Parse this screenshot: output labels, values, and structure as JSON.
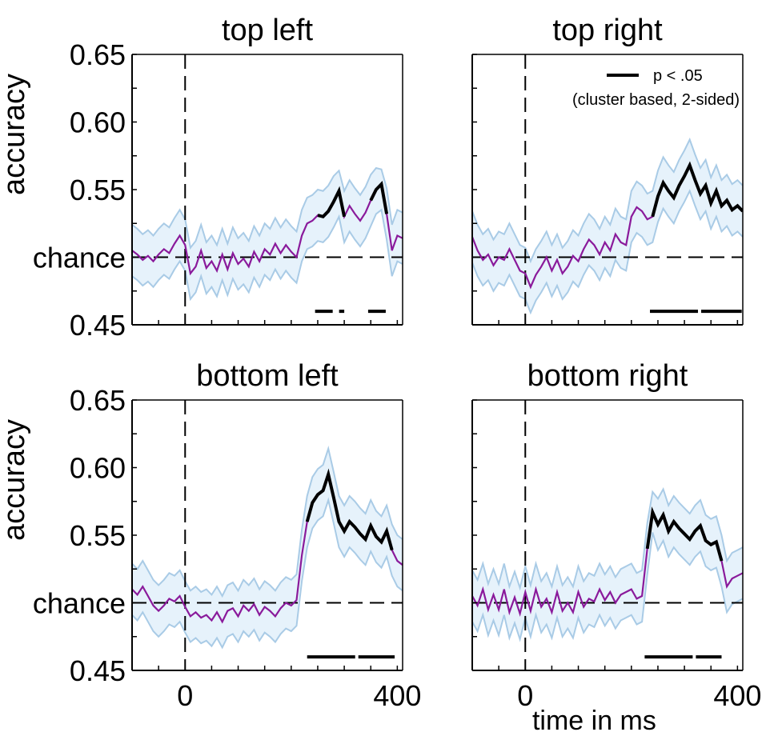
{
  "chart_data": [
    {
      "type": "line",
      "title": "top left",
      "ylabel": "accuracy",
      "xlabel": "",
      "xlim": [
        -100,
        410
      ],
      "ylim": [
        0.45,
        0.65
      ],
      "yticks": [
        0.45,
        0.5,
        0.55,
        0.6,
        0.65
      ],
      "ytick_labels": [
        "0.45",
        "chance",
        "0.55",
        "0.60",
        "0.65"
      ],
      "xticks": [],
      "chance": 0.5,
      "stimulus_onset": 0,
      "series": [
        {
          "x": [
            -100,
            -90,
            -80,
            -70,
            -60,
            -50,
            -40,
            -30,
            -20,
            -10,
            0,
            10,
            20,
            30,
            40,
            50,
            60,
            70,
            80,
            90,
            100,
            110,
            120,
            130,
            140,
            150,
            160,
            170,
            180,
            190,
            200,
            210,
            220,
            230,
            240,
            250,
            260,
            270,
            280,
            290,
            300,
            310,
            320,
            330,
            340,
            350,
            360,
            370,
            380,
            390,
            400,
            410
          ],
          "y": [
            0.505,
            0.502,
            0.498,
            0.501,
            0.497,
            0.502,
            0.506,
            0.503,
            0.51,
            0.516,
            0.509,
            0.488,
            0.493,
            0.505,
            0.492,
            0.497,
            0.49,
            0.502,
            0.491,
            0.503,
            0.495,
            0.499,
            0.493,
            0.504,
            0.497,
            0.506,
            0.502,
            0.51,
            0.503,
            0.509,
            0.504,
            0.5,
            0.516,
            0.525,
            0.527,
            0.531,
            0.53,
            0.534,
            0.541,
            0.549,
            0.53,
            0.538,
            0.532,
            0.527,
            0.533,
            0.542,
            0.55,
            0.554,
            0.532,
            0.505,
            0.516,
            0.514
          ],
          "upper": [
            0.524,
            0.521,
            0.517,
            0.52,
            0.516,
            0.521,
            0.525,
            0.522,
            0.529,
            0.535,
            0.528,
            0.507,
            0.512,
            0.524,
            0.511,
            0.516,
            0.509,
            0.521,
            0.51,
            0.522,
            0.514,
            0.518,
            0.512,
            0.523,
            0.516,
            0.525,
            0.521,
            0.529,
            0.522,
            0.528,
            0.523,
            0.519,
            0.535,
            0.544,
            0.546,
            0.55,
            0.549,
            0.553,
            0.56,
            0.564,
            0.549,
            0.557,
            0.551,
            0.546,
            0.552,
            0.561,
            0.566,
            0.565,
            0.551,
            0.524,
            0.535,
            0.533
          ],
          "lower": [
            0.486,
            0.483,
            0.479,
            0.482,
            0.478,
            0.483,
            0.487,
            0.484,
            0.491,
            0.497,
            0.49,
            0.469,
            0.474,
            0.486,
            0.473,
            0.478,
            0.471,
            0.483,
            0.472,
            0.484,
            0.476,
            0.48,
            0.474,
            0.485,
            0.478,
            0.487,
            0.483,
            0.491,
            0.484,
            0.49,
            0.485,
            0.481,
            0.497,
            0.506,
            0.508,
            0.512,
            0.511,
            0.515,
            0.522,
            0.53,
            0.511,
            0.519,
            0.513,
            0.508,
            0.514,
            0.523,
            0.532,
            0.535,
            0.513,
            0.486,
            0.497,
            0.495
          ]
        }
      ],
      "significant_clusters": [
        [
          245,
          300
        ],
        [
          345,
          385
        ]
      ],
      "sig_bars_at": 0.46
    },
    {
      "type": "line",
      "title": "top right",
      "ylabel": "",
      "xlabel": "",
      "xlim": [
        -100,
        410
      ],
      "ylim": [
        0.45,
        0.65
      ],
      "yticks": [
        0.45,
        0.5,
        0.55,
        0.6,
        0.65
      ],
      "ytick_labels": [],
      "xticks": [],
      "chance": 0.5,
      "stimulus_onset": 0,
      "series": [
        {
          "x": [
            -100,
            -90,
            -80,
            -70,
            -60,
            -50,
            -40,
            -30,
            -20,
            -10,
            0,
            10,
            20,
            30,
            40,
            50,
            60,
            70,
            80,
            90,
            100,
            110,
            120,
            130,
            140,
            150,
            160,
            170,
            180,
            190,
            200,
            210,
            220,
            230,
            240,
            250,
            260,
            270,
            280,
            290,
            300,
            310,
            320,
            330,
            340,
            350,
            360,
            370,
            380,
            390,
            400,
            410
          ],
          "y": [
            0.515,
            0.505,
            0.498,
            0.502,
            0.494,
            0.5,
            0.498,
            0.506,
            0.498,
            0.49,
            0.488,
            0.478,
            0.487,
            0.493,
            0.5,
            0.49,
            0.498,
            0.488,
            0.493,
            0.501,
            0.497,
            0.506,
            0.513,
            0.509,
            0.502,
            0.511,
            0.505,
            0.517,
            0.511,
            0.509,
            0.53,
            0.537,
            0.534,
            0.528,
            0.53,
            0.545,
            0.555,
            0.549,
            0.544,
            0.553,
            0.56,
            0.568,
            0.557,
            0.547,
            0.553,
            0.54,
            0.549,
            0.538,
            0.542,
            0.535,
            0.538,
            0.534
          ],
          "upper": [
            0.534,
            0.524,
            0.517,
            0.521,
            0.513,
            0.519,
            0.517,
            0.525,
            0.517,
            0.509,
            0.507,
            0.497,
            0.506,
            0.512,
            0.519,
            0.509,
            0.517,
            0.507,
            0.512,
            0.52,
            0.516,
            0.525,
            0.532,
            0.528,
            0.521,
            0.53,
            0.524,
            0.536,
            0.53,
            0.528,
            0.549,
            0.556,
            0.553,
            0.547,
            0.549,
            0.564,
            0.574,
            0.568,
            0.563,
            0.572,
            0.579,
            0.587,
            0.576,
            0.566,
            0.572,
            0.559,
            0.568,
            0.557,
            0.561,
            0.554,
            0.557,
            0.553
          ],
          "lower": [
            0.496,
            0.486,
            0.479,
            0.483,
            0.475,
            0.481,
            0.479,
            0.487,
            0.479,
            0.471,
            0.469,
            0.459,
            0.468,
            0.474,
            0.481,
            0.471,
            0.479,
            0.469,
            0.474,
            0.482,
            0.478,
            0.487,
            0.494,
            0.49,
            0.483,
            0.492,
            0.486,
            0.498,
            0.492,
            0.49,
            0.511,
            0.518,
            0.515,
            0.509,
            0.511,
            0.526,
            0.536,
            0.53,
            0.525,
            0.534,
            0.541,
            0.549,
            0.538,
            0.528,
            0.534,
            0.521,
            0.53,
            0.519,
            0.523,
            0.516,
            0.519,
            0.515
          ]
        }
      ],
      "significant_clusters": [
        [
          235,
          410
        ]
      ],
      "sig_bars_at": 0.46,
      "legend": {
        "position": "top-right",
        "entries": [
          "p < .05",
          "(cluster based, 2-sided)"
        ]
      }
    },
    {
      "type": "line",
      "title": "bottom left",
      "ylabel": "accuracy",
      "xlabel": "",
      "xlim": [
        -100,
        410
      ],
      "ylim": [
        0.45,
        0.65
      ],
      "yticks": [
        0.45,
        0.5,
        0.55,
        0.6,
        0.65
      ],
      "ytick_labels": [
        "0.45",
        "chance",
        "0.55",
        "0.60",
        "0.65"
      ],
      "xticks": [
        0,
        400
      ],
      "xtick_labels": [
        "0",
        "400"
      ],
      "chance": 0.5,
      "stimulus_onset": 0,
      "series": [
        {
          "x": [
            -100,
            -90,
            -80,
            -70,
            -60,
            -50,
            -40,
            -30,
            -20,
            -10,
            0,
            10,
            20,
            30,
            40,
            50,
            60,
            70,
            80,
            90,
            100,
            110,
            120,
            130,
            140,
            150,
            160,
            170,
            180,
            190,
            200,
            210,
            220,
            230,
            240,
            250,
            260,
            270,
            280,
            290,
            300,
            310,
            320,
            330,
            340,
            350,
            360,
            370,
            380,
            390,
            400,
            410
          ],
          "y": [
            0.51,
            0.506,
            0.512,
            0.505,
            0.498,
            0.494,
            0.498,
            0.503,
            0.501,
            0.505,
            0.497,
            0.49,
            0.493,
            0.489,
            0.491,
            0.487,
            0.493,
            0.486,
            0.494,
            0.496,
            0.49,
            0.498,
            0.494,
            0.499,
            0.491,
            0.497,
            0.494,
            0.49,
            0.496,
            0.5,
            0.498,
            0.502,
            0.535,
            0.56,
            0.574,
            0.58,
            0.583,
            0.595,
            0.578,
            0.56,
            0.553,
            0.56,
            0.556,
            0.551,
            0.547,
            0.557,
            0.549,
            0.545,
            0.553,
            0.539,
            0.531,
            0.528
          ],
          "upper": [
            0.529,
            0.525,
            0.531,
            0.524,
            0.517,
            0.513,
            0.517,
            0.522,
            0.52,
            0.524,
            0.516,
            0.509,
            0.512,
            0.508,
            0.51,
            0.506,
            0.512,
            0.505,
            0.513,
            0.515,
            0.509,
            0.517,
            0.513,
            0.518,
            0.51,
            0.516,
            0.513,
            0.509,
            0.515,
            0.519,
            0.517,
            0.521,
            0.554,
            0.579,
            0.593,
            0.599,
            0.602,
            0.614,
            0.597,
            0.579,
            0.572,
            0.579,
            0.575,
            0.57,
            0.566,
            0.576,
            0.568,
            0.564,
            0.572,
            0.558,
            0.55,
            0.547
          ],
          "lower": [
            0.491,
            0.487,
            0.493,
            0.486,
            0.479,
            0.475,
            0.479,
            0.484,
            0.482,
            0.486,
            0.478,
            0.471,
            0.474,
            0.47,
            0.472,
            0.468,
            0.474,
            0.467,
            0.475,
            0.477,
            0.471,
            0.479,
            0.475,
            0.48,
            0.472,
            0.478,
            0.475,
            0.471,
            0.477,
            0.481,
            0.479,
            0.483,
            0.516,
            0.541,
            0.555,
            0.561,
            0.564,
            0.576,
            0.559,
            0.541,
            0.534,
            0.541,
            0.537,
            0.532,
            0.528,
            0.538,
            0.53,
            0.526,
            0.534,
            0.52,
            0.512,
            0.509
          ]
        }
      ],
      "significant_clusters": [
        [
          230,
          395
        ]
      ],
      "sig_bars_at": 0.46
    },
    {
      "type": "line",
      "title": "bottom right",
      "ylabel": "",
      "xlabel": "time in ms",
      "xlim": [
        -100,
        410
      ],
      "ylim": [
        0.45,
        0.65
      ],
      "yticks": [
        0.45,
        0.5,
        0.55,
        0.6,
        0.65
      ],
      "ytick_labels": [],
      "xticks": [
        0,
        400
      ],
      "xtick_labels": [
        "0",
        "400"
      ],
      "chance": 0.5,
      "stimulus_onset": 0,
      "series": [
        {
          "x": [
            -100,
            -90,
            -80,
            -70,
            -60,
            -50,
            -40,
            -30,
            -20,
            -10,
            0,
            10,
            20,
            30,
            40,
            50,
            60,
            70,
            80,
            90,
            100,
            110,
            120,
            130,
            140,
            150,
            160,
            170,
            180,
            190,
            200,
            210,
            220,
            230,
            240,
            250,
            260,
            270,
            280,
            290,
            300,
            310,
            320,
            330,
            340,
            350,
            360,
            370,
            380,
            390,
            400,
            410
          ],
          "y": [
            0.505,
            0.498,
            0.51,
            0.495,
            0.506,
            0.495,
            0.51,
            0.493,
            0.504,
            0.492,
            0.508,
            0.494,
            0.51,
            0.497,
            0.503,
            0.493,
            0.508,
            0.494,
            0.5,
            0.493,
            0.508,
            0.497,
            0.503,
            0.501,
            0.51,
            0.502,
            0.508,
            0.5,
            0.506,
            0.508,
            0.51,
            0.503,
            0.505,
            0.54,
            0.567,
            0.558,
            0.565,
            0.553,
            0.56,
            0.555,
            0.551,
            0.547,
            0.553,
            0.557,
            0.546,
            0.543,
            0.545,
            0.531,
            0.512,
            0.518,
            0.52,
            0.522
          ],
          "upper": [
            0.524,
            0.517,
            0.529,
            0.514,
            0.525,
            0.514,
            0.529,
            0.512,
            0.523,
            0.511,
            0.527,
            0.513,
            0.529,
            0.516,
            0.522,
            0.512,
            0.527,
            0.513,
            0.519,
            0.512,
            0.527,
            0.516,
            0.522,
            0.52,
            0.529,
            0.521,
            0.527,
            0.519,
            0.525,
            0.527,
            0.529,
            0.522,
            0.524,
            0.559,
            0.582,
            0.577,
            0.584,
            0.572,
            0.579,
            0.574,
            0.57,
            0.566,
            0.572,
            0.576,
            0.565,
            0.562,
            0.564,
            0.55,
            0.531,
            0.537,
            0.539,
            0.541
          ],
          "lower": [
            0.486,
            0.479,
            0.491,
            0.476,
            0.487,
            0.476,
            0.491,
            0.474,
            0.485,
            0.473,
            0.489,
            0.475,
            0.491,
            0.478,
            0.484,
            0.474,
            0.489,
            0.475,
            0.481,
            0.474,
            0.489,
            0.478,
            0.484,
            0.482,
            0.491,
            0.483,
            0.489,
            0.481,
            0.487,
            0.489,
            0.491,
            0.484,
            0.486,
            0.521,
            0.552,
            0.539,
            0.546,
            0.534,
            0.541,
            0.536,
            0.532,
            0.528,
            0.534,
            0.538,
            0.527,
            0.524,
            0.526,
            0.512,
            0.493,
            0.499,
            0.501,
            0.503
          ]
        }
      ],
      "significant_clusters": [
        [
          225,
          370
        ]
      ],
      "sig_bars_at": 0.46
    }
  ],
  "colors": {
    "mean_line": "#8a1a9b",
    "ci_fill": "#e6f2fb",
    "ci_edge": "#a9cbe6",
    "significant": "#000000",
    "axes": "#000000"
  }
}
